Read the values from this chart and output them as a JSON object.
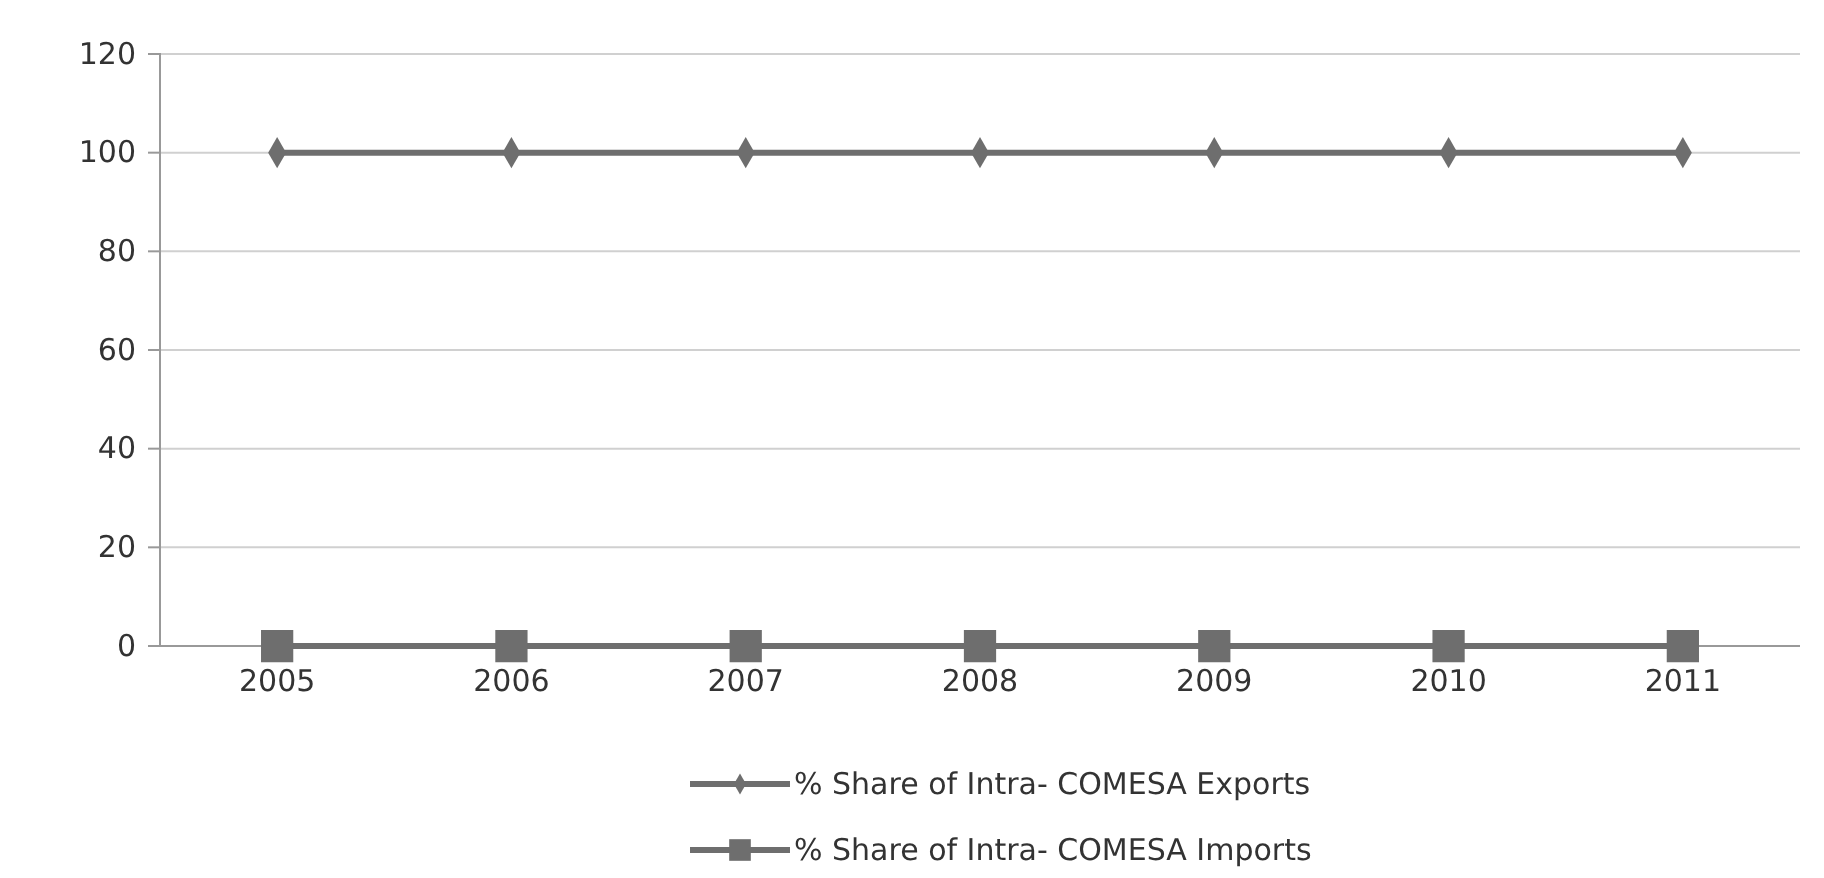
{
  "chart_data": {
    "type": "line",
    "categories": [
      "2005",
      "2006",
      "2007",
      "2008",
      "2009",
      "2010",
      "2011"
    ],
    "series": [
      {
        "name": "% Share of Intra- COMESA Exports",
        "color": "#6e6e6e",
        "marker": "diamond",
        "values": [
          100,
          100,
          100,
          100,
          100,
          100,
          100
        ]
      },
      {
        "name": "% Share of Intra- COMESA Imports",
        "color": "#6e6e6e",
        "marker": "square",
        "values": [
          0,
          0,
          0,
          0,
          0,
          0,
          0
        ]
      }
    ],
    "ylim": [
      0,
      120
    ],
    "yticks": [
      0,
      20,
      40,
      60,
      80,
      100,
      120
    ],
    "grid": "y",
    "legend": "bottom",
    "line_style": "solid"
  }
}
